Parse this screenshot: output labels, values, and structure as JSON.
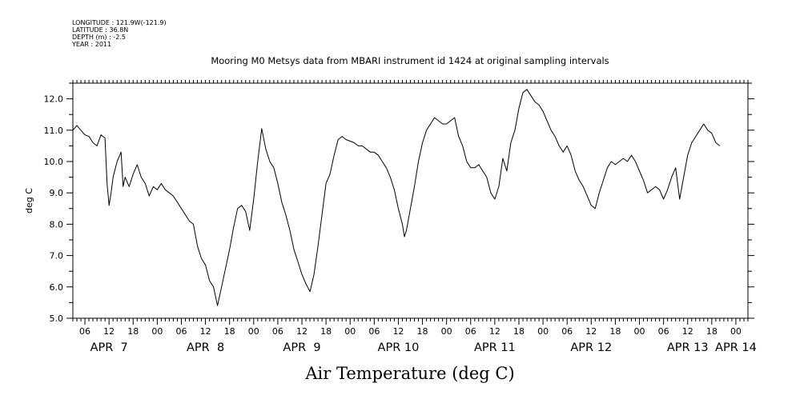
{
  "meta": {
    "longitude": "LONGITUDE : 121.9W(-121.9)",
    "latitude": "LATITUDE : 36.8N",
    "depth": "DEPTH (m) : -2.5",
    "year": "YEAR : 2011"
  },
  "chart_data": {
    "type": "line",
    "title": "Mooring M0 Metsys data from MBARI instrument id 1424 at original sampling intervals",
    "xlabel": "Air Temperature (deg C)",
    "ylabel": "deg C",
    "ylim": [
      5.0,
      12.5
    ],
    "yticks": [
      "5.0",
      "6.0",
      "7.0",
      "8.0",
      "9.0",
      "10.0",
      "11.0",
      "12.0"
    ],
    "x_units": "hours since 2011-04-07 00:00",
    "xlim": [
      3,
      171
    ],
    "hour_ticks": [
      {
        "x": 6,
        "label": "06"
      },
      {
        "x": 12,
        "label": "12"
      },
      {
        "x": 18,
        "label": "18"
      },
      {
        "x": 24,
        "label": "00"
      },
      {
        "x": 30,
        "label": "06"
      },
      {
        "x": 36,
        "label": "12"
      },
      {
        "x": 42,
        "label": "18"
      },
      {
        "x": 48,
        "label": "00"
      },
      {
        "x": 54,
        "label": "06"
      },
      {
        "x": 60,
        "label": "12"
      },
      {
        "x": 66,
        "label": "18"
      },
      {
        "x": 72,
        "label": "00"
      },
      {
        "x": 78,
        "label": "06"
      },
      {
        "x": 84,
        "label": "12"
      },
      {
        "x": 90,
        "label": "18"
      },
      {
        "x": 96,
        "label": "00"
      },
      {
        "x": 102,
        "label": "06"
      },
      {
        "x": 108,
        "label": "12"
      },
      {
        "x": 114,
        "label": "18"
      },
      {
        "x": 120,
        "label": "00"
      },
      {
        "x": 126,
        "label": "06"
      },
      {
        "x": 132,
        "label": "12"
      },
      {
        "x": 138,
        "label": "18"
      },
      {
        "x": 144,
        "label": "00"
      },
      {
        "x": 150,
        "label": "06"
      },
      {
        "x": 156,
        "label": "12"
      },
      {
        "x": 162,
        "label": "18"
      },
      {
        "x": 168,
        "label": "00"
      }
    ],
    "day_labels": [
      {
        "x": 12,
        "label": "APR  7"
      },
      {
        "x": 36,
        "label": "APR  8"
      },
      {
        "x": 60,
        "label": "APR  9"
      },
      {
        "x": 84,
        "label": "APR 10"
      },
      {
        "x": 108,
        "label": "APR 11"
      },
      {
        "x": 132,
        "label": "APR 12"
      },
      {
        "x": 156,
        "label": "APR 13"
      },
      {
        "x": 168,
        "label": "APR 14"
      }
    ],
    "series": [
      {
        "color": "#000000",
        "points": [
          [
            3,
            11.0
          ],
          [
            4,
            11.15
          ],
          [
            5,
            11.0
          ],
          [
            6,
            10.85
          ],
          [
            7,
            10.8
          ],
          [
            8,
            10.6
          ],
          [
            9,
            10.5
          ],
          [
            10,
            10.85
          ],
          [
            11,
            10.75
          ],
          [
            11.5,
            9.3
          ],
          [
            12,
            8.6
          ],
          [
            12.5,
            9.0
          ],
          [
            13,
            9.5
          ],
          [
            14,
            10.0
          ],
          [
            15,
            10.3
          ],
          [
            15.5,
            9.2
          ],
          [
            16,
            9.5
          ],
          [
            17,
            9.2
          ],
          [
            18,
            9.6
          ],
          [
            19,
            9.9
          ],
          [
            20,
            9.5
          ],
          [
            21,
            9.3
          ],
          [
            22,
            8.9
          ],
          [
            23,
            9.2
          ],
          [
            24,
            9.1
          ],
          [
            25,
            9.3
          ],
          [
            26,
            9.1
          ],
          [
            27,
            9.0
          ],
          [
            28,
            8.9
          ],
          [
            29,
            8.7
          ],
          [
            30,
            8.5
          ],
          [
            31,
            8.3
          ],
          [
            32,
            8.1
          ],
          [
            33,
            8.0
          ],
          [
            34,
            7.3
          ],
          [
            35,
            6.9
          ],
          [
            36,
            6.7
          ],
          [
            37,
            6.2
          ],
          [
            38,
            6.0
          ],
          [
            39,
            5.4
          ],
          [
            40,
            6.0
          ],
          [
            41,
            6.6
          ],
          [
            42,
            7.2
          ],
          [
            43,
            7.9
          ],
          [
            44,
            8.5
          ],
          [
            45,
            8.6
          ],
          [
            46,
            8.4
          ],
          [
            47,
            7.8
          ],
          [
            48,
            8.8
          ],
          [
            49,
            10.0
          ],
          [
            50,
            11.05
          ],
          [
            51,
            10.4
          ],
          [
            52,
            10.0
          ],
          [
            53,
            9.8
          ],
          [
            54,
            9.3
          ],
          [
            55,
            8.7
          ],
          [
            56,
            8.3
          ],
          [
            57,
            7.8
          ],
          [
            58,
            7.2
          ],
          [
            59,
            6.8
          ],
          [
            60,
            6.4
          ],
          [
            61,
            6.1
          ],
          [
            62,
            5.85
          ],
          [
            63,
            6.4
          ],
          [
            64,
            7.3
          ],
          [
            65,
            8.3
          ],
          [
            66,
            9.3
          ],
          [
            67,
            9.6
          ],
          [
            68,
            10.2
          ],
          [
            69,
            10.7
          ],
          [
            70,
            10.8
          ],
          [
            71,
            10.7
          ],
          [
            72,
            10.65
          ],
          [
            73,
            10.6
          ],
          [
            74,
            10.5
          ],
          [
            75,
            10.5
          ],
          [
            76,
            10.4
          ],
          [
            77,
            10.3
          ],
          [
            78,
            10.3
          ],
          [
            79,
            10.2
          ],
          [
            80,
            10.0
          ],
          [
            81,
            9.8
          ],
          [
            82,
            9.5
          ],
          [
            83,
            9.1
          ],
          [
            84,
            8.5
          ],
          [
            85,
            8.0
          ],
          [
            85.5,
            7.6
          ],
          [
            86,
            7.8
          ],
          [
            87,
            8.5
          ],
          [
            88,
            9.2
          ],
          [
            89,
            10.0
          ],
          [
            90,
            10.6
          ],
          [
            91,
            11.0
          ],
          [
            92,
            11.2
          ],
          [
            93,
            11.4
          ],
          [
            94,
            11.3
          ],
          [
            95,
            11.2
          ],
          [
            96,
            11.2
          ],
          [
            97,
            11.3
          ],
          [
            98,
            11.4
          ],
          [
            99,
            10.8
          ],
          [
            100,
            10.5
          ],
          [
            101,
            10.0
          ],
          [
            102,
            9.8
          ],
          [
            103,
            9.8
          ],
          [
            104,
            9.9
          ],
          [
            105,
            9.7
          ],
          [
            106,
            9.5
          ],
          [
            107,
            9.0
          ],
          [
            108,
            8.8
          ],
          [
            109,
            9.2
          ],
          [
            110,
            10.1
          ],
          [
            111,
            9.7
          ],
          [
            112,
            10.6
          ],
          [
            113,
            11.0
          ],
          [
            114,
            11.7
          ],
          [
            115,
            12.2
          ],
          [
            116,
            12.3
          ],
          [
            117,
            12.1
          ],
          [
            118,
            11.9
          ],
          [
            119,
            11.8
          ],
          [
            120,
            11.6
          ],
          [
            121,
            11.3
          ],
          [
            122,
            11.0
          ],
          [
            123,
            10.8
          ],
          [
            124,
            10.5
          ],
          [
            125,
            10.3
          ],
          [
            126,
            10.5
          ],
          [
            127,
            10.2
          ],
          [
            128,
            9.7
          ],
          [
            129,
            9.4
          ],
          [
            130,
            9.2
          ],
          [
            131,
            8.9
          ],
          [
            132,
            8.6
          ],
          [
            133,
            8.5
          ],
          [
            134,
            9.0
          ],
          [
            135,
            9.4
          ],
          [
            136,
            9.8
          ],
          [
            137,
            10.0
          ],
          [
            138,
            9.9
          ],
          [
            139,
            10.0
          ],
          [
            140,
            10.1
          ],
          [
            141,
            10.0
          ],
          [
            142,
            10.2
          ],
          [
            143,
            10.0
          ],
          [
            144,
            9.7
          ],
          [
            145,
            9.4
          ],
          [
            146,
            9.0
          ],
          [
            147,
            9.1
          ],
          [
            148,
            9.2
          ],
          [
            149,
            9.1
          ],
          [
            150,
            8.8
          ],
          [
            151,
            9.1
          ],
          [
            152,
            9.5
          ],
          [
            153,
            9.8
          ],
          [
            154,
            8.8
          ],
          [
            155,
            9.5
          ],
          [
            156,
            10.2
          ],
          [
            157,
            10.6
          ],
          [
            158,
            10.8
          ],
          [
            159,
            11.0
          ],
          [
            160,
            11.2
          ],
          [
            161,
            11.0
          ],
          [
            162,
            10.9
          ],
          [
            163,
            10.6
          ],
          [
            164,
            10.5
          ]
        ]
      }
    ]
  }
}
